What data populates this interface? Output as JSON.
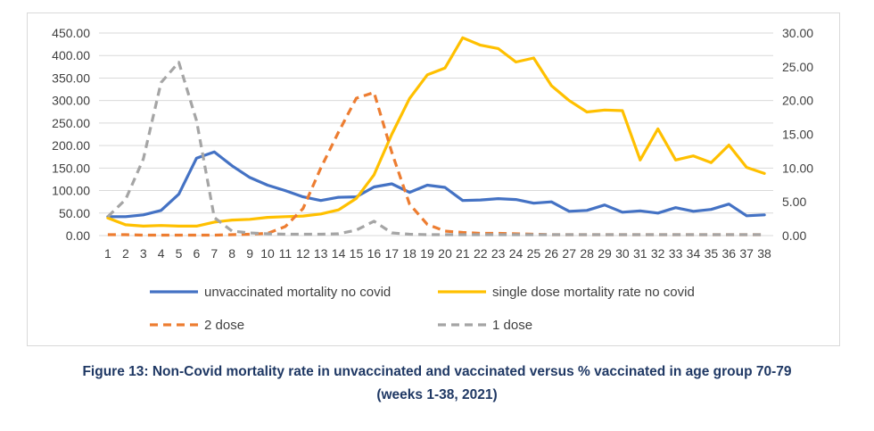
{
  "chart_data": {
    "type": "line",
    "x": [
      1,
      2,
      3,
      4,
      5,
      6,
      7,
      8,
      9,
      10,
      11,
      12,
      13,
      14,
      15,
      16,
      17,
      18,
      19,
      20,
      21,
      22,
      23,
      24,
      25,
      26,
      27,
      28,
      29,
      30,
      31,
      32,
      33,
      34,
      35,
      36,
      37,
      38
    ],
    "x_tick_labels": [
      "1",
      "2",
      "3",
      "4",
      "5",
      "6",
      "7",
      "8",
      "9",
      "10",
      "11",
      "12",
      "13",
      "14",
      "15",
      "16",
      "17",
      "18",
      "19",
      "20",
      "21",
      "22",
      "23",
      "24",
      "25",
      "26",
      "27",
      "28",
      "29",
      "30",
      "31",
      "32",
      "33",
      "34",
      "35",
      "36",
      "37",
      "38"
    ],
    "y_left": {
      "range": [
        0,
        450
      ],
      "ticks": [
        "0.00",
        "50.00",
        "100.00",
        "150.00",
        "200.00",
        "250.00",
        "300.00",
        "350.00",
        "400.00",
        "450.00"
      ]
    },
    "y_right": {
      "range": [
        0,
        30
      ],
      "ticks": [
        "0.00",
        "5.00",
        "10.00",
        "15.00",
        "20.00",
        "25.00",
        "30.00"
      ]
    },
    "grid": "horizontal",
    "legend_position": "bottom",
    "series": [
      {
        "name": "unvaccinated mortality no covid",
        "axis": "left",
        "color": "#4472c4",
        "dash": "solid",
        "values": [
          42,
          42,
          46,
          56,
          92,
          172,
          186,
          155,
          129,
          112,
          100,
          86,
          78,
          85,
          86,
          108,
          115,
          96,
          112,
          107,
          78,
          79,
          82,
          80,
          72,
          75,
          54,
          56,
          68,
          52,
          55,
          50,
          62,
          54,
          58,
          70,
          44,
          46
        ]
      },
      {
        "name": "single dose mortality rate no covid",
        "axis": "right",
        "color": "#ffc000",
        "dash": "solid",
        "values": [
          2.6,
          1.6,
          1.4,
          1.5,
          1.4,
          1.4,
          2.0,
          2.3,
          2.4,
          2.7,
          2.8,
          2.9,
          3.2,
          3.8,
          5.5,
          9.0,
          15.0,
          20.3,
          23.8,
          24.8,
          29.3,
          28.2,
          27.7,
          25.7,
          26.3,
          22.2,
          20.0,
          18.3,
          18.6,
          18.5,
          11.2,
          15.8,
          11.2,
          11.8,
          10.8,
          13.4,
          10.1,
          9.2
        ]
      },
      {
        "name": "2 dose",
        "axis": "left",
        "color": "#ed7d31",
        "dash": "dashed",
        "values": [
          2,
          2,
          1,
          1,
          1,
          1,
          1,
          2,
          3,
          5,
          20,
          60,
          150,
          230,
          305,
          318,
          185,
          70,
          25,
          10,
          7,
          5,
          5,
          4,
          3,
          2,
          2,
          2,
          2,
          2,
          2,
          2,
          2,
          2,
          2,
          2,
          2,
          2
        ]
      },
      {
        "name": "1 dose",
        "axis": "left",
        "color": "#a5a5a5",
        "dash": "dashed",
        "values": [
          42,
          80,
          170,
          340,
          385,
          255,
          40,
          10,
          6,
          4,
          3,
          3,
          3,
          4,
          12,
          32,
          6,
          3,
          2,
          2,
          2,
          2,
          2,
          2,
          2,
          2,
          2,
          2,
          2,
          2,
          2,
          2,
          2,
          2,
          2,
          2,
          2,
          2
        ]
      }
    ]
  },
  "caption": {
    "line1": "Figure 13: Non-Covid mortality rate in unvaccinated and vaccinated versus % vaccinated in age group 70-79",
    "line2": "(weeks 1-38, 2021)"
  }
}
